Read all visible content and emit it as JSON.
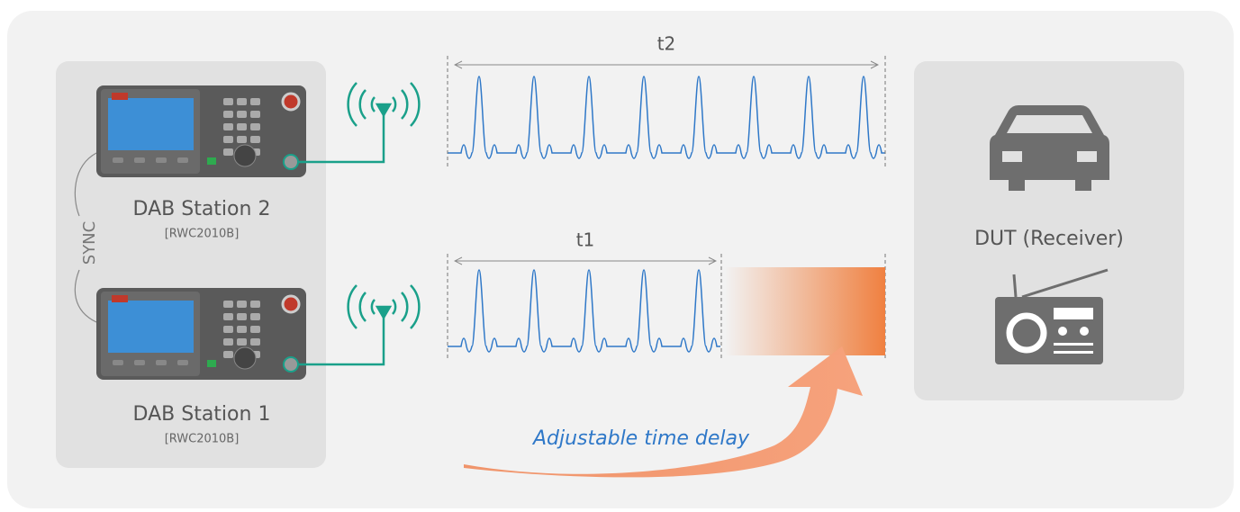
{
  "labels": {
    "t2": "t2",
    "t1": "t1",
    "delay": "Adjustable time delay",
    "sync": "SYNC"
  },
  "stations": [
    {
      "name": "DAB Station 2",
      "model": "[RWC2010B]"
    },
    {
      "name": "DAB Station 1",
      "model": "[RWC2010B]"
    }
  ],
  "dut": {
    "label": "DUT (Receiver)"
  }
}
